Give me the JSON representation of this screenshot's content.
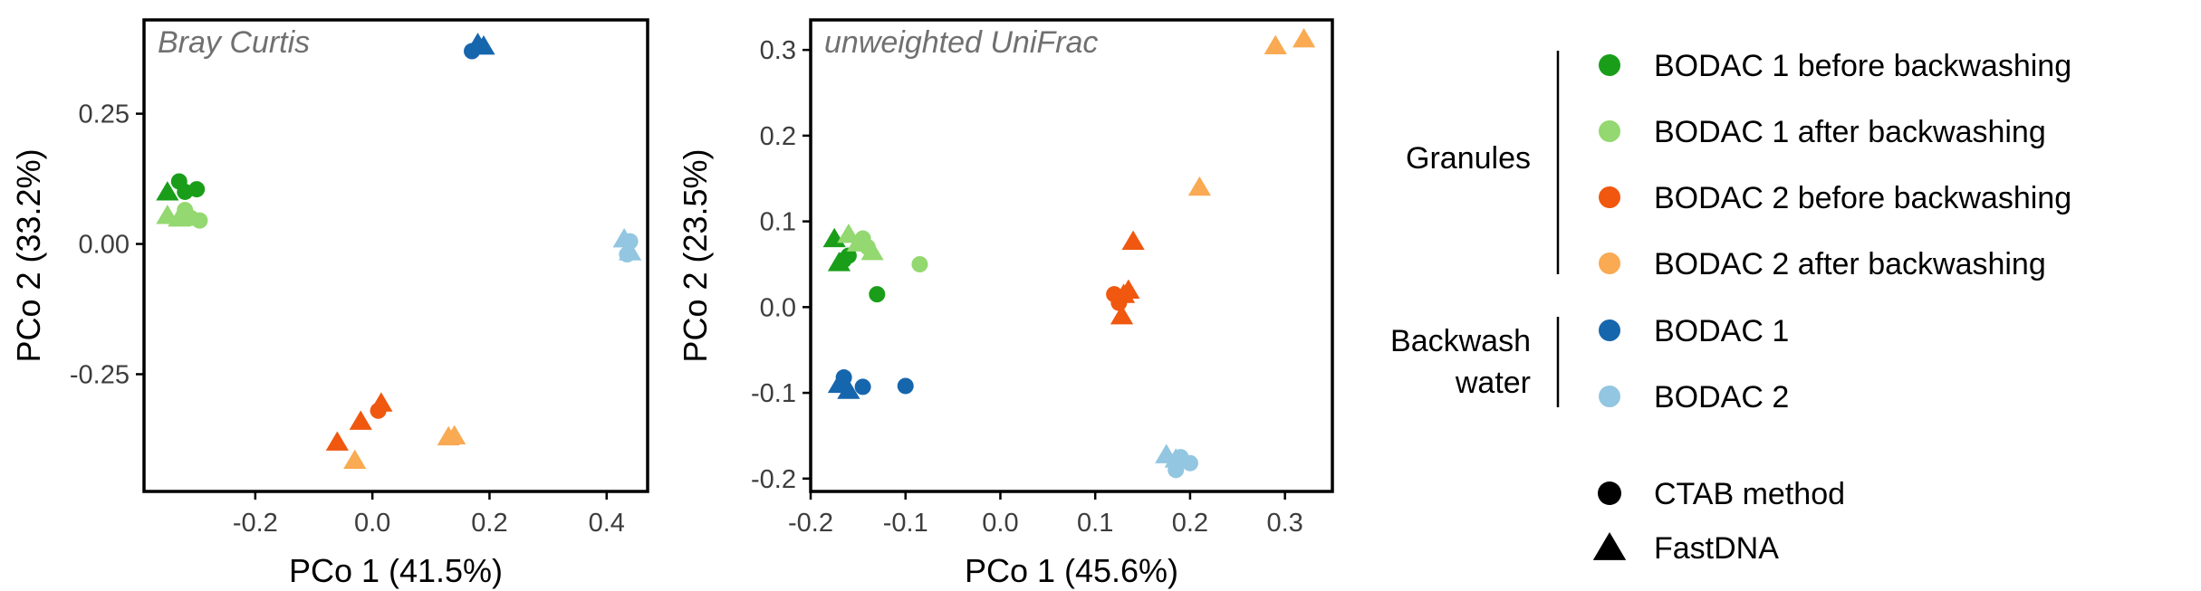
{
  "colors": {
    "g1_before": "#1a9e1a",
    "g1_after": "#93d870",
    "g2_before": "#f0570f",
    "g2_after": "#f9aa52",
    "bw1": "#1666ad",
    "bw2": "#93c6e0",
    "axis": "#000000",
    "title": "#707070",
    "tick": "#3d3d3d"
  },
  "chart_data": [
    {
      "type": "scatter",
      "title": "Bray Curtis",
      "xlabel": "PCo 1   (41.5%)",
      "ylabel": "PCo 2   (33.2%)",
      "xlim": [
        -0.39,
        0.47
      ],
      "ylim": [
        -0.475,
        0.43
      ],
      "xticks": [
        {
          "v": -0.2,
          "t": "-0.2"
        },
        {
          "v": 0,
          "t": "0.0"
        },
        {
          "v": 0.2,
          "t": "0.2"
        },
        {
          "v": 0.4,
          "t": "0.4"
        }
      ],
      "yticks": [
        {
          "v": 0.25,
          "t": "0.25"
        },
        {
          "v": 0,
          "t": "0.00"
        },
        {
          "v": -0.25,
          "t": "-0.25"
        }
      ],
      "points": [
        {
          "x": -0.35,
          "y": 0.1,
          "group": "g1_before",
          "method": "fastdna"
        },
        {
          "x": -0.33,
          "y": 0.12,
          "group": "g1_before",
          "method": "ctab"
        },
        {
          "x": -0.3,
          "y": 0.105,
          "group": "g1_before",
          "method": "ctab"
        },
        {
          "x": -0.32,
          "y": 0.1,
          "group": "g1_before",
          "method": "ctab"
        },
        {
          "x": -0.35,
          "y": 0.055,
          "group": "g1_after",
          "method": "fastdna"
        },
        {
          "x": -0.32,
          "y": 0.065,
          "group": "g1_after",
          "method": "ctab"
        },
        {
          "x": -0.31,
          "y": 0.05,
          "group": "g1_after",
          "method": "ctab"
        },
        {
          "x": -0.295,
          "y": 0.045,
          "group": "g1_after",
          "method": "ctab"
        },
        {
          "x": -0.33,
          "y": 0.05,
          "group": "g1_after",
          "method": "fastdna"
        },
        {
          "x": -0.06,
          "y": -0.38,
          "group": "g2_before",
          "method": "fastdna"
        },
        {
          "x": -0.02,
          "y": -0.34,
          "group": "g2_before",
          "method": "fastdna"
        },
        {
          "x": 0.01,
          "y": -0.32,
          "group": "g2_before",
          "method": "ctab"
        },
        {
          "x": 0.015,
          "y": -0.305,
          "group": "g2_before",
          "method": "fastdna"
        },
        {
          "x": -0.03,
          "y": -0.415,
          "group": "g2_after",
          "method": "fastdna"
        },
        {
          "x": 0.13,
          "y": -0.37,
          "group": "g2_after",
          "method": "fastdna"
        },
        {
          "x": 0.14,
          "y": -0.368,
          "group": "g2_after",
          "method": "fastdna"
        },
        {
          "x": 0.17,
          "y": 0.37,
          "group": "bw1",
          "method": "ctab"
        },
        {
          "x": 0.18,
          "y": 0.385,
          "group": "bw1",
          "method": "fastdna"
        },
        {
          "x": 0.19,
          "y": 0.38,
          "group": "bw1",
          "method": "fastdna"
        },
        {
          "x": 0.43,
          "y": 0.01,
          "group": "bw2",
          "method": "fastdna"
        },
        {
          "x": 0.44,
          "y": 0.005,
          "group": "bw2",
          "method": "ctab"
        },
        {
          "x": 0.44,
          "y": -0.015,
          "group": "bw2",
          "method": "fastdna"
        },
        {
          "x": 0.435,
          "y": -0.02,
          "group": "bw2",
          "method": "ctab"
        }
      ]
    },
    {
      "type": "scatter",
      "title": "unweighted UniFrac",
      "xlabel": "PCo 1   (45.6%)",
      "ylabel": "PCo 2   (23.5%)",
      "xlim": [
        -0.2,
        0.35
      ],
      "ylim": [
        -0.215,
        0.335
      ],
      "xticks": [
        {
          "v": -0.2,
          "t": "-0.2"
        },
        {
          "v": -0.1,
          "t": "-0.1"
        },
        {
          "v": 0,
          "t": "0.0"
        },
        {
          "v": 0.1,
          "t": "0.1"
        },
        {
          "v": 0.2,
          "t": "0.2"
        },
        {
          "v": 0.3,
          "t": "0.3"
        }
      ],
      "yticks": [
        {
          "v": 0.3,
          "t": "0.3"
        },
        {
          "v": 0.2,
          "t": "0.2"
        },
        {
          "v": 0.1,
          "t": "0.1"
        },
        {
          "v": 0,
          "t": "0.0"
        },
        {
          "v": -0.1,
          "t": "-0.1"
        },
        {
          "v": -0.2,
          "t": "-0.2"
        }
      ],
      "points": [
        {
          "x": -0.175,
          "y": 0.08,
          "group": "g1_before",
          "method": "fastdna"
        },
        {
          "x": -0.165,
          "y": 0.055,
          "group": "g1_before",
          "method": "ctab"
        },
        {
          "x": -0.16,
          "y": 0.06,
          "group": "g1_before",
          "method": "ctab"
        },
        {
          "x": -0.17,
          "y": 0.052,
          "group": "g1_before",
          "method": "fastdna"
        },
        {
          "x": -0.13,
          "y": 0.015,
          "group": "g1_before",
          "method": "ctab"
        },
        {
          "x": -0.16,
          "y": 0.085,
          "group": "g1_after",
          "method": "fastdna"
        },
        {
          "x": -0.15,
          "y": 0.075,
          "group": "g1_after",
          "method": "fastdna"
        },
        {
          "x": -0.145,
          "y": 0.08,
          "group": "g1_after",
          "method": "ctab"
        },
        {
          "x": -0.14,
          "y": 0.07,
          "group": "g1_after",
          "method": "ctab"
        },
        {
          "x": -0.135,
          "y": 0.065,
          "group": "g1_after",
          "method": "fastdna"
        },
        {
          "x": -0.085,
          "y": 0.05,
          "group": "g1_after",
          "method": "ctab"
        },
        {
          "x": 0.12,
          "y": 0.015,
          "group": "g2_before",
          "method": "ctab"
        },
        {
          "x": 0.125,
          "y": 0.005,
          "group": "g2_before",
          "method": "ctab"
        },
        {
          "x": 0.13,
          "y": 0.015,
          "group": "g2_before",
          "method": "fastdna"
        },
        {
          "x": 0.135,
          "y": 0.02,
          "group": "g2_before",
          "method": "fastdna"
        },
        {
          "x": 0.128,
          "y": -0.01,
          "group": "g2_before",
          "method": "fastdna"
        },
        {
          "x": 0.14,
          "y": 0.077,
          "group": "g2_before",
          "method": "fastdna"
        },
        {
          "x": 0.21,
          "y": 0.14,
          "group": "g2_after",
          "method": "fastdna"
        },
        {
          "x": 0.29,
          "y": 0.305,
          "group": "g2_after",
          "method": "fastdna"
        },
        {
          "x": 0.32,
          "y": 0.313,
          "group": "g2_after",
          "method": "fastdna"
        },
        {
          "x": -0.17,
          "y": -0.09,
          "group": "bw1",
          "method": "fastdna"
        },
        {
          "x": -0.165,
          "y": -0.082,
          "group": "bw1",
          "method": "ctab"
        },
        {
          "x": -0.16,
          "y": -0.097,
          "group": "bw1",
          "method": "fastdna"
        },
        {
          "x": -0.145,
          "y": -0.093,
          "group": "bw1",
          "method": "ctab"
        },
        {
          "x": -0.1,
          "y": -0.092,
          "group": "bw1",
          "method": "ctab"
        },
        {
          "x": 0.175,
          "y": -0.172,
          "group": "bw2",
          "method": "fastdna"
        },
        {
          "x": 0.185,
          "y": -0.177,
          "group": "bw2",
          "method": "fastdna"
        },
        {
          "x": 0.19,
          "y": -0.175,
          "group": "bw2",
          "method": "ctab"
        },
        {
          "x": 0.2,
          "y": -0.182,
          "group": "bw2",
          "method": "ctab"
        },
        {
          "x": 0.185,
          "y": -0.19,
          "group": "bw2",
          "method": "ctab"
        }
      ]
    }
  ],
  "legend": {
    "categories": [
      {
        "label": "Granules",
        "items": [
          {
            "group": "g1_before",
            "label": "BODAC 1 before backwashing"
          },
          {
            "group": "g1_after",
            "label": "BODAC 1 after backwashing"
          },
          {
            "group": "g2_before",
            "label": "BODAC 2 before backwashing"
          },
          {
            "group": "g2_after",
            "label": "BODAC 2 after backwashing"
          }
        ]
      },
      {
        "label_lines": [
          "Backwash",
          "water"
        ],
        "items": [
          {
            "group": "bw1",
            "label": "BODAC 1"
          },
          {
            "group": "bw2",
            "label": "BODAC 2"
          }
        ]
      }
    ],
    "methods": [
      {
        "shape": "circle",
        "label": "CTAB method"
      },
      {
        "shape": "triangle",
        "label": "FastDNA"
      }
    ]
  }
}
